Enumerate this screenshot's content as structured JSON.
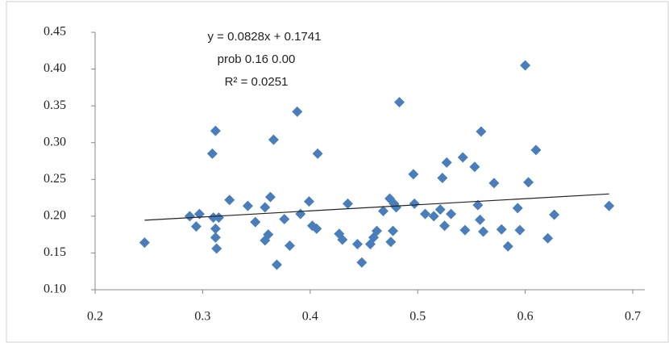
{
  "chart_data": {
    "type": "scatter",
    "color": "#4a7ebb",
    "trend_color": "#222222",
    "annotations": [
      "y = 0.0828x + 0.1741",
      "prob  0.16    0.00",
      "R² = 0.0251"
    ],
    "trendline": {
      "slope": 0.0828,
      "intercept": 0.1741
    },
    "xlim": [
      0.2,
      0.7
    ],
    "ylim": [
      0.1,
      0.45
    ],
    "xticks": [
      0.2,
      0.3,
      0.4,
      0.5,
      0.6,
      0.7
    ],
    "yticks": [
      {
        "value": 0.1,
        "label": "0.10"
      },
      0.15,
      {
        "value": 0.2,
        "label": "0.20"
      },
      0.25,
      {
        "value": 0.3,
        "label": "0.30"
      },
      0.35,
      {
        "value": 0.4,
        "label": "0.40"
      },
      0.45
    ],
    "x": [
      0.246,
      0.288,
      0.294,
      0.297,
      0.309,
      0.312,
      0.31,
      0.312,
      0.312,
      0.313,
      0.315,
      0.325,
      0.342,
      0.349,
      0.358,
      0.358,
      0.361,
      0.363,
      0.366,
      0.369,
      0.376,
      0.381,
      0.388,
      0.391,
      0.399,
      0.402,
      0.406,
      0.407,
      0.427,
      0.43,
      0.435,
      0.444,
      0.448,
      0.456,
      0.459,
      0.462,
      0.468,
      0.474,
      0.475,
      0.477,
      0.478,
      0.48,
      0.483,
      0.496,
      0.497,
      0.507,
      0.515,
      0.521,
      0.523,
      0.525,
      0.527,
      0.531,
      0.542,
      0.544,
      0.553,
      0.556,
      0.558,
      0.559,
      0.561,
      0.571,
      0.578,
      0.584,
      0.593,
      0.595,
      0.603,
      0.61,
      0.621,
      0.627,
      0.6,
      0.678
    ],
    "y": [
      0.164,
      0.2,
      0.186,
      0.203,
      0.285,
      0.316,
      0.198,
      0.183,
      0.171,
      0.156,
      0.198,
      0.222,
      0.214,
      0.192,
      0.212,
      0.167,
      0.175,
      0.226,
      0.304,
      0.134,
      0.196,
      0.16,
      0.342,
      0.203,
      0.22,
      0.187,
      0.183,
      0.285,
      0.176,
      0.168,
      0.217,
      0.162,
      0.137,
      0.162,
      0.171,
      0.18,
      0.207,
      0.224,
      0.165,
      0.18,
      0.217,
      0.212,
      0.355,
      0.257,
      0.217,
      0.203,
      0.2,
      0.209,
      0.252,
      0.187,
      0.273,
      0.203,
      0.28,
      0.181,
      0.267,
      0.215,
      0.195,
      0.315,
      0.179,
      0.245,
      0.182,
      0.159,
      0.211,
      0.181,
      0.246,
      0.29,
      0.17,
      0.202,
      0.405,
      0.214
    ]
  }
}
